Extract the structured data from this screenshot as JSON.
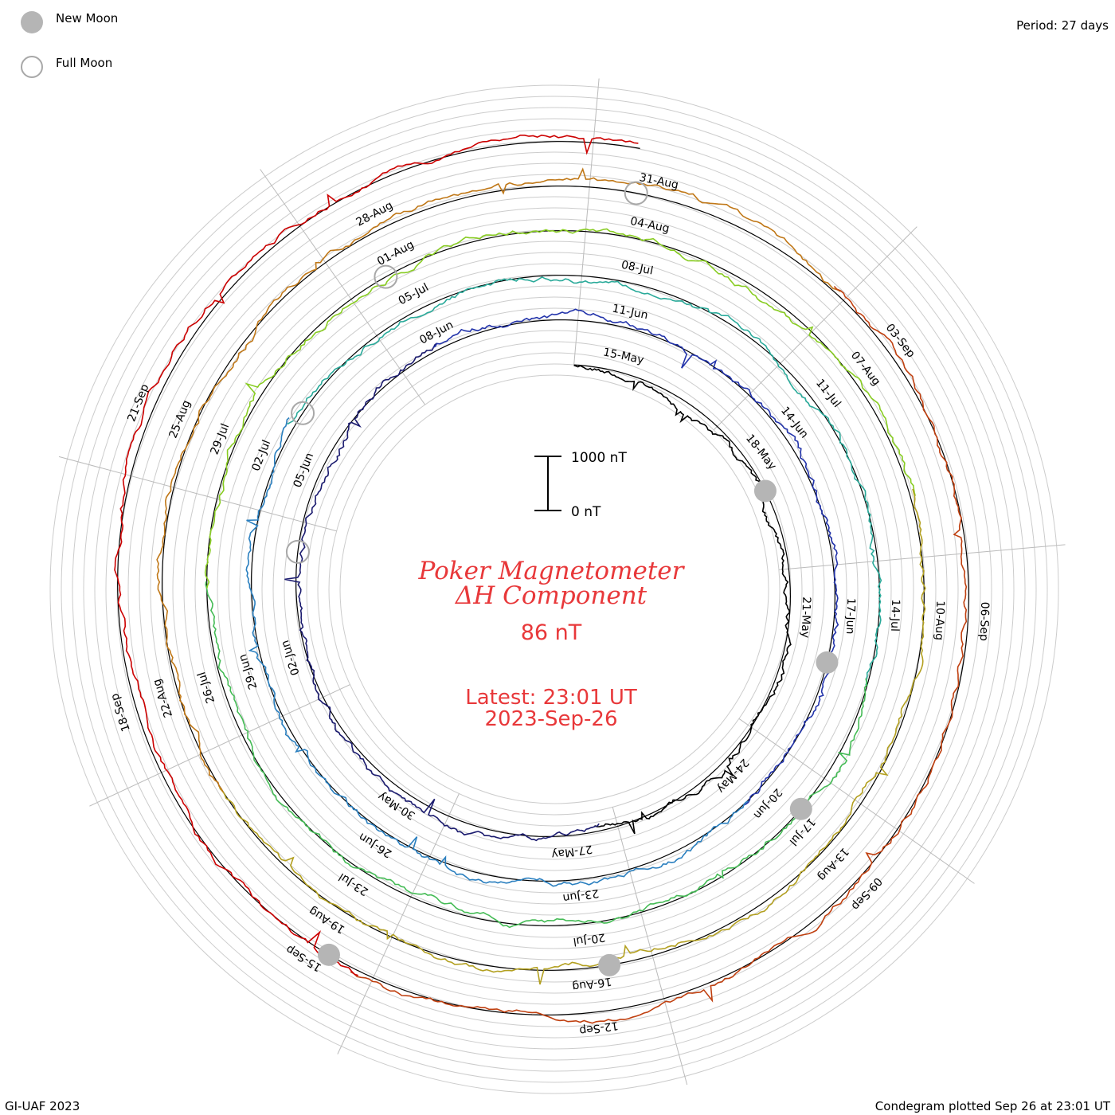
{
  "legend": {
    "new_moon_label": "New Moon",
    "full_moon_label": "Full Moon",
    "new_moon_color": "#b5b5b5",
    "full_moon_color": "#a8a8a8"
  },
  "period_label": "Period: 27 days",
  "footer_left": "GI-UAF 2023",
  "footer_right": "Condegram plotted Sep 26 at 23:01 UT",
  "chart_data": {
    "type": "line",
    "title": "Poker Magnetometer",
    "subtitle": "ΔH Component",
    "current_value": "86 nT",
    "latest_time": "Latest: 23:01 UT",
    "latest_date": "2023-Sep-26",
    "scale_bar": {
      "top_label": "1000 nT",
      "bottom_label": "0 nT",
      "value_nT": 1000
    },
    "period_days": 27,
    "date_range": [
      "2023-05-13",
      "2023-09-26"
    ],
    "grid": true,
    "series_colors": [
      "#000000",
      "#1a1a6e",
      "#2233aa",
      "#2a7fbf",
      "#2aaa9a",
      "#44bb55",
      "#88cc22",
      "#b3a020",
      "#c07818",
      "#c04010",
      "#cc0000"
    ],
    "date_labels": {
      "ring1": [
        "15-May",
        "18-May",
        "21-May",
        "24-May",
        "27-May",
        "30-May",
        "02-Jun",
        "05-Jun",
        "08-Jun"
      ],
      "ring2": [
        "11-Jun",
        "14-Jun",
        "17-Jun",
        "20-Jun",
        "23-Jun",
        "26-Jun",
        "29-Jun",
        "02-Jul",
        "05-Jul"
      ],
      "ring3": [
        "08-Jul",
        "11-Jul",
        "14-Jul",
        "17-Jul",
        "20-Jul",
        "23-Jul",
        "26-Jul",
        "29-Jul",
        "01-Aug"
      ],
      "ring4": [
        "04-Aug",
        "07-Aug",
        "10-Aug",
        "13-Aug",
        "16-Aug",
        "19-Aug",
        "22-Aug",
        "25-Aug",
        "28-Aug"
      ],
      "ring5": [
        "31-Aug",
        "03-Sep",
        "06-Sep",
        "09-Sep",
        "12-Sep",
        "15-Sep",
        "18-Sep",
        "21-Sep"
      ]
    },
    "new_moon_dates": [
      "2023-05-19",
      "2023-06-18",
      "2023-07-17",
      "2023-08-16",
      "2023-09-15"
    ],
    "full_moon_dates": [
      "2023-06-04",
      "2023-07-03",
      "2023-08-01",
      "2023-08-31"
    ]
  }
}
